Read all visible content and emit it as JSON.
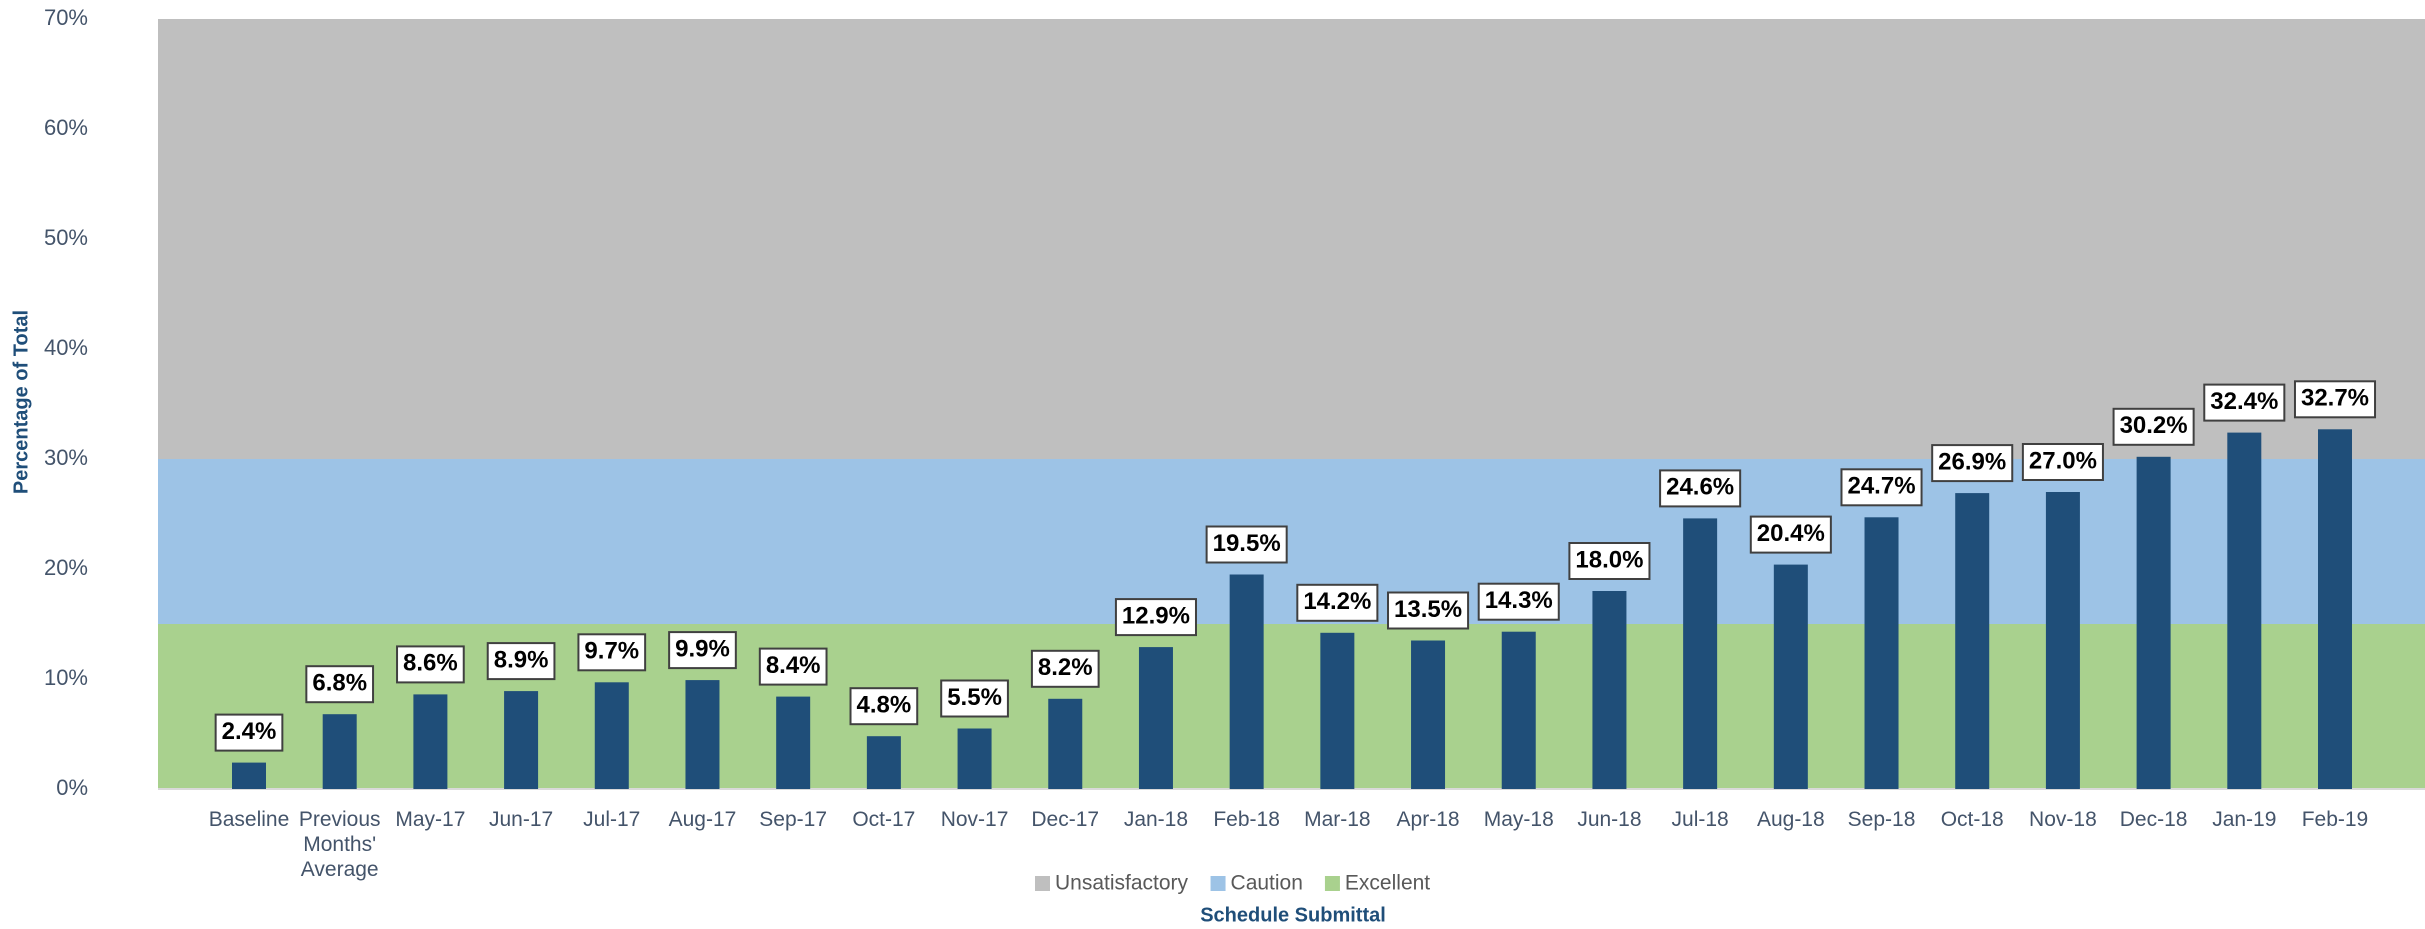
{
  "chart_data": {
    "type": "bar",
    "x_label": "Schedule Submittal",
    "y_label": "Percentage of Total",
    "categories": [
      "Baseline",
      "Previous Months' Average",
      "May-17",
      "Jun-17",
      "Jul-17",
      "Aug-17",
      "Sep-17",
      "Oct-17",
      "Nov-17",
      "Dec-17",
      "Jan-18",
      "Feb-18",
      "Mar-18",
      "Apr-18",
      "May-18",
      "Jun-18",
      "Jul-18",
      "Aug-18",
      "Sep-18",
      "Oct-18",
      "Nov-18",
      "Dec-18",
      "Jan-19",
      "Feb-19"
    ],
    "values": [
      2.4,
      6.8,
      8.6,
      8.9,
      9.7,
      9.9,
      8.4,
      4.8,
      5.5,
      8.2,
      12.9,
      19.5,
      14.2,
      13.5,
      14.3,
      18.0,
      24.6,
      20.4,
      24.7,
      26.9,
      27.0,
      30.2,
      32.4,
      32.7
    ],
    "value_labels": [
      "2.4%",
      "6.8%",
      "8.6%",
      "8.9%",
      "9.7%",
      "9.9%",
      "8.4%",
      "4.8%",
      "5.5%",
      "8.2%",
      "12.9%",
      "19.5%",
      "14.2%",
      "13.5%",
      "14.3%",
      "18.0%",
      "24.6%",
      "20.4%",
      "24.7%",
      "26.9%",
      "27.0%",
      "30.2%",
      "32.4%",
      "32.7%"
    ],
    "color": "#1f4e79",
    "bands": [
      {
        "name": "Unsatisfactory",
        "color": "#bfbfbf",
        "from": 30,
        "to": 70
      },
      {
        "name": "Caution",
        "color": "#9dc3e6",
        "from": 15,
        "to": 30
      },
      {
        "name": "Excellent",
        "color": "#a9d18e",
        "from": 0,
        "to": 15
      }
    ],
    "ylim": [
      0,
      70
    ],
    "yticks": [
      {
        "value": 0,
        "label": "0%"
      },
      {
        "value": 10,
        "label": "10%"
      },
      {
        "value": 20,
        "label": "20%"
      },
      {
        "value": 30,
        "label": "30%"
      },
      {
        "value": 40,
        "label": "40%"
      },
      {
        "value": 50,
        "label": "50%"
      },
      {
        "value": 60,
        "label": "60%"
      },
      {
        "value": 70,
        "label": "70%"
      }
    ],
    "legend": "bottom"
  }
}
